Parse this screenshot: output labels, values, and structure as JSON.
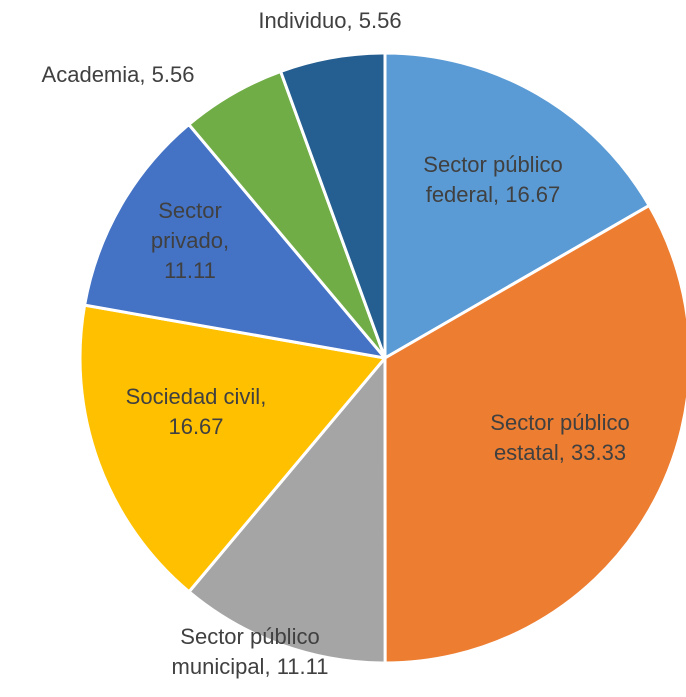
{
  "chart_data": {
    "type": "pie",
    "categories": [
      "Sector público federal",
      "Sector público estatal",
      "Sector público municipal",
      "Sociedad civil",
      "Sector privado",
      "Academia",
      "Individuo"
    ],
    "values": [
      16.67,
      33.33,
      11.11,
      16.67,
      11.11,
      5.56,
      5.56
    ],
    "colors": [
      "#5b9bd5",
      "#ed7d31",
      "#a5a5a5",
      "#ffc000",
      "#4472c4",
      "#70ad47",
      "#255e91"
    ],
    "label_separator": ", "
  }
}
